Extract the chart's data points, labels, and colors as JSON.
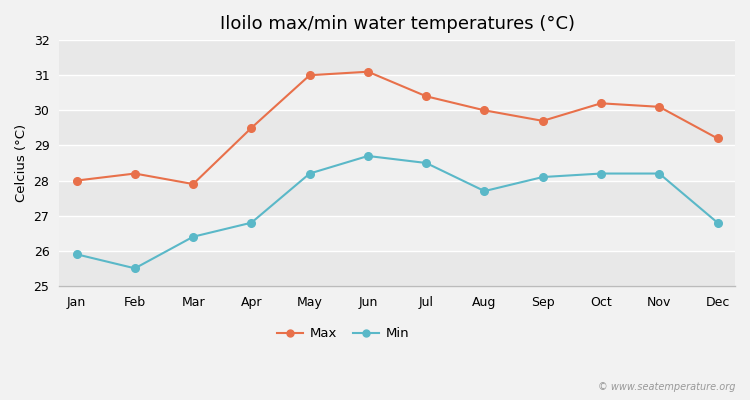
{
  "title": "Iloilo max/min water temperatures (°C)",
  "ylabel": "Celcius (°C)",
  "months": [
    "Jan",
    "Feb",
    "Mar",
    "Apr",
    "May",
    "Jun",
    "Jul",
    "Aug",
    "Sep",
    "Oct",
    "Nov",
    "Dec"
  ],
  "max_temps": [
    28.0,
    28.2,
    27.9,
    29.5,
    31.0,
    31.1,
    30.4,
    30.0,
    29.7,
    30.2,
    30.1,
    29.2
  ],
  "min_temps": [
    25.9,
    25.5,
    26.4,
    26.8,
    28.2,
    28.7,
    28.5,
    27.7,
    28.1,
    28.2,
    28.2,
    26.8
  ],
  "max_color": "#e8704a",
  "min_color": "#5ab8c8",
  "bg_color": "#f2f2f2",
  "band_colors": [
    "#e8e8e8",
    "#f0f0f0"
  ],
  "grid_color": "#ffffff",
  "ylim": [
    25,
    32
  ],
  "yticks": [
    25,
    26,
    27,
    28,
    29,
    30,
    31,
    32
  ],
  "watermark": "© www.seatemperature.org",
  "legend_labels": [
    "Max",
    "Min"
  ],
  "title_fontsize": 13,
  "label_fontsize": 9.5,
  "tick_fontsize": 9,
  "watermark_fontsize": 7
}
